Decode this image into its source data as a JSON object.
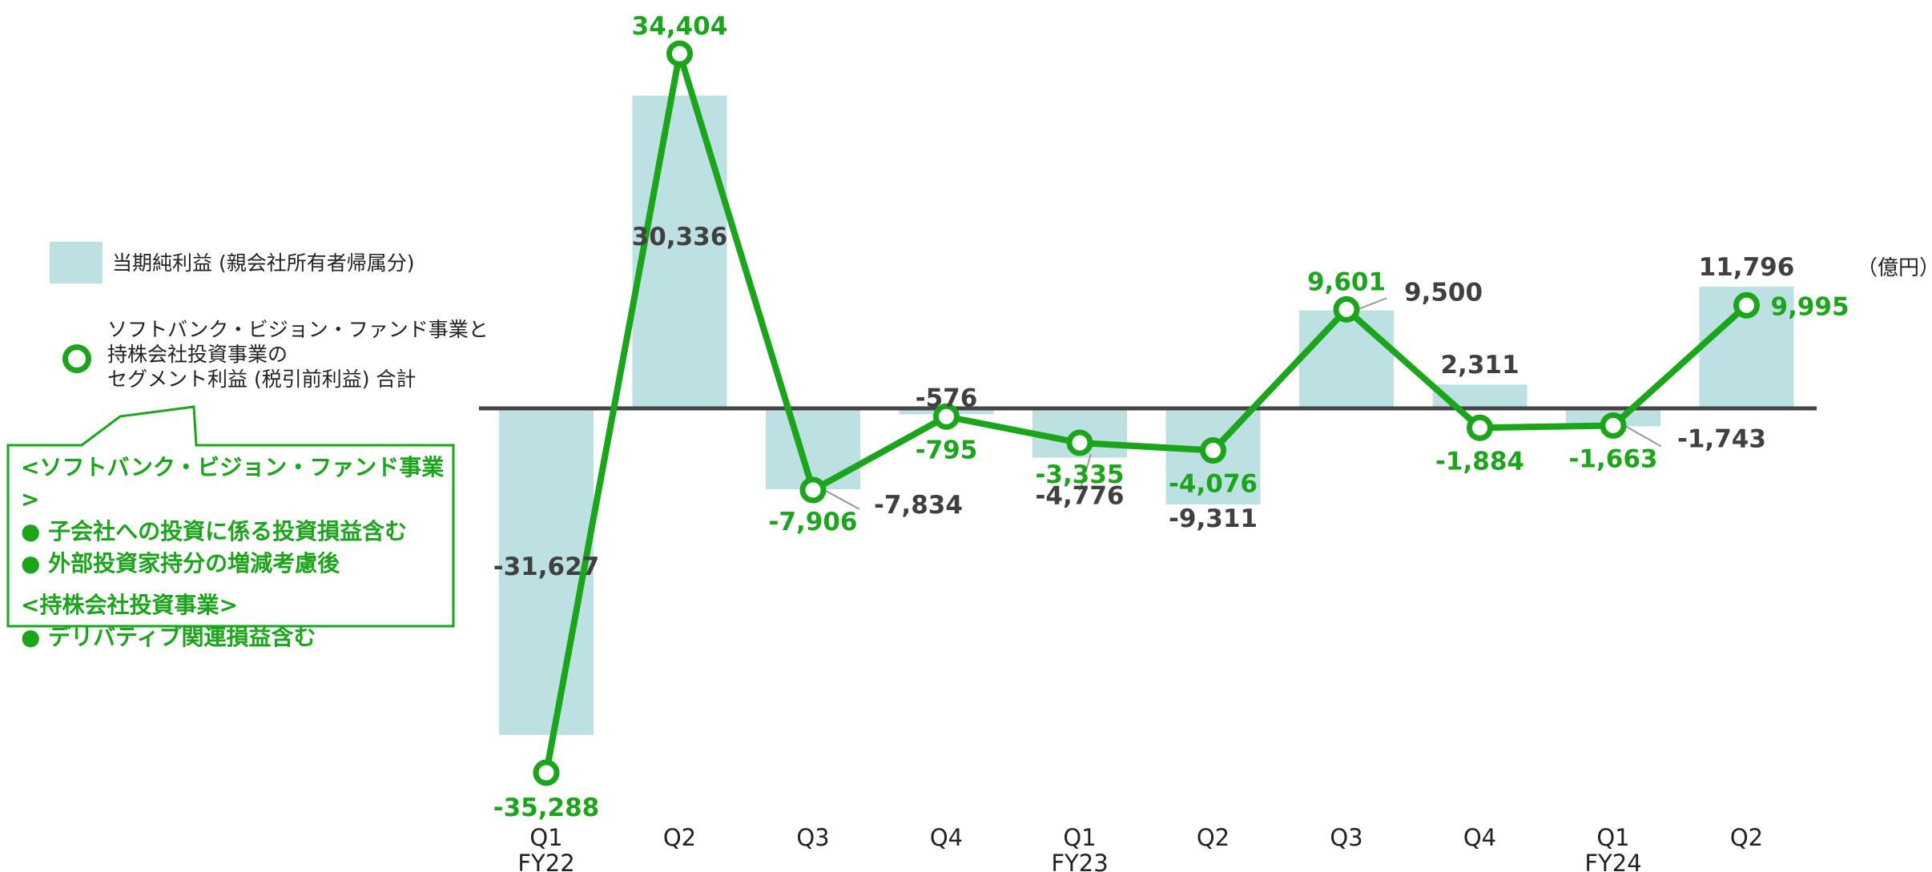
{
  "legend": {
    "bar_label": "当期純利益 (親会社所有者帰属分)",
    "line_label_lines": [
      "ソフトバンク・ビジョン・ファンド事業と",
      "持株会社投資事業の",
      "セグメント利益 (税引前利益) 合計"
    ]
  },
  "callout": {
    "lines": [
      "<ソフトバンク・ビジョン・ファンド事業>",
      "●  子会社への投資に係る投資損益含む",
      "●  外部投資家持分の増減考慮後",
      "<持株会社投資事業>",
      "●  デリバティブ関連損益含む"
    ]
  },
  "unit": "（億円）",
  "colors": {
    "bar": "#bde0e3",
    "line": "#1aa51a",
    "axis": "#444444",
    "bar_label": "#404040"
  },
  "chart_data": {
    "type": "bar",
    "categories": [
      "Q1",
      "Q2",
      "Q3",
      "Q4",
      "Q1",
      "Q2",
      "Q3",
      "Q4",
      "Q1",
      "Q2"
    ],
    "fiscal_year_labels": [
      "FY22",
      "",
      "",
      "",
      "FY23",
      "",
      "",
      "",
      "FY24",
      ""
    ],
    "series": [
      {
        "name": "当期純利益 (親会社所有者帰属分)",
        "type": "bar",
        "values": [
          -31627,
          30336,
          -7834,
          -576,
          -4776,
          -9311,
          9500,
          2311,
          -1743,
          11796
        ],
        "value_labels": [
          "-31,627",
          "30,336",
          "-7,834",
          "-576",
          "-4,776",
          "-9,311",
          "9,500",
          "2,311",
          "-1,743",
          "11,796"
        ]
      },
      {
        "name": "ソフトバンク・ビジョン・ファンド事業と持株会社投資事業のセグメント利益 (税引前利益) 合計",
        "type": "line",
        "values": [
          -35288,
          34404,
          -7906,
          -795,
          -3335,
          -4076,
          9601,
          -1884,
          -1663,
          9995
        ],
        "value_labels": [
          "-35,288",
          "34,404",
          "-7,906",
          "-795",
          "-3,335",
          "-4,076",
          "9,601",
          "-1,884",
          "-1,663",
          "9,995"
        ]
      }
    ],
    "ylim": [
      -35288,
      34404
    ],
    "grid": false,
    "legend_position": "left"
  }
}
